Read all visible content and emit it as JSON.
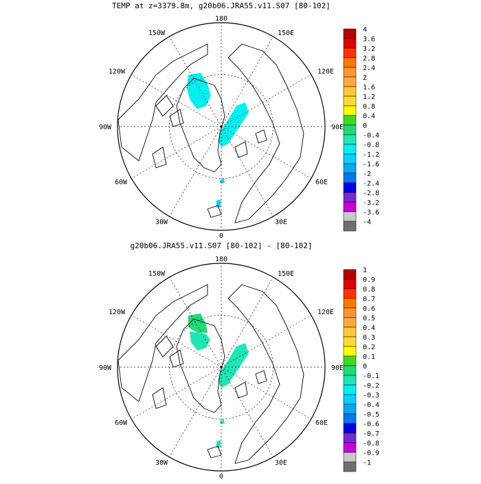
{
  "panels": [
    {
      "title": "TEMP at z=3379.8m, g20b06.JRA55.v11.S07 [80-102]",
      "lon_labels": [
        "180",
        "150E",
        "120E",
        "90E",
        "60E",
        "30E",
        "0",
        "30W",
        "60W",
        "90W",
        "120W",
        "150W"
      ],
      "colorbar": {
        "labels": [
          "4",
          "3.6",
          "3.2",
          "2.8",
          "2.4",
          "2",
          "1.6",
          "1.2",
          "0.8",
          "0.4",
          "0",
          "-0.4",
          "-0.8",
          "-1.2",
          "-1.6",
          "-2",
          "-2.4",
          "-2.8",
          "-3.2",
          "-3.6",
          "-4"
        ],
        "colors": [
          "#b40000",
          "#e10000",
          "#ff3200",
          "#ff7800",
          "#ff9632",
          "#ffaa3c",
          "#ffc83c",
          "#ffdc32",
          "#ffff00",
          "#3cdc1e",
          "#1edc78",
          "#1ee6b4",
          "#00f0f0",
          "#00d2ff",
          "#00aaf0",
          "#0078f0",
          "#0000e6",
          "#7828d2",
          "#c800dc",
          "#c8c8c8",
          "#707070"
        ]
      }
    },
    {
      "title": "g20b06.JRA55.v11.S07 [80-102] -  [80-102]",
      "lon_labels": [
        "180",
        "150E",
        "120E",
        "90E",
        "60E",
        "30E",
        "0",
        "30W",
        "60W",
        "90W",
        "120W",
        "150W"
      ],
      "colorbar": {
        "labels": [
          "1",
          "0.9",
          "0.8",
          "0.7",
          "0.6",
          "0.5",
          "0.4",
          "0.3",
          "0.2",
          "0.1",
          "0",
          "-0.1",
          "-0.2",
          "-0.3",
          "-0.4",
          "-0.5",
          "-0.6",
          "-0.7",
          "-0.8",
          "-0.9",
          "-1"
        ],
        "colors": [
          "#b40000",
          "#e10000",
          "#ff3200",
          "#ff7800",
          "#ff9632",
          "#ffaa3c",
          "#ffc83c",
          "#ffdc32",
          "#ffff00",
          "#3cdc1e",
          "#1edc78",
          "#1ee6b4",
          "#00f0f0",
          "#00d2ff",
          "#00aaf0",
          "#0078f0",
          "#0000e6",
          "#7828d2",
          "#c800dc",
          "#c8c8c8",
          "#707070"
        ]
      }
    }
  ]
}
